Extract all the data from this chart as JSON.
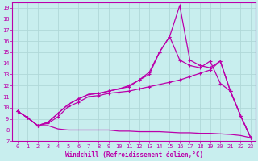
{
  "xlabel": "Windchill (Refroidissement éolien,°C)",
  "bg_color": "#c8eeee",
  "grid_color": "#b0d8d8",
  "line_color": "#bb00aa",
  "xlim": [
    -0.5,
    23.5
  ],
  "ylim": [
    7,
    19.5
  ],
  "xticks": [
    0,
    1,
    2,
    3,
    4,
    5,
    6,
    7,
    8,
    9,
    10,
    11,
    12,
    13,
    14,
    15,
    16,
    17,
    18,
    19,
    20,
    21,
    22,
    23
  ],
  "yticks": [
    7,
    8,
    9,
    10,
    11,
    12,
    13,
    14,
    15,
    16,
    17,
    18,
    19
  ],
  "line1_flat": {
    "x": [
      0,
      1,
      2,
      3,
      4,
      5,
      6,
      7,
      8,
      9,
      10,
      11,
      12,
      13,
      14,
      15,
      16,
      17,
      18,
      19,
      20,
      21,
      22,
      23
    ],
    "y": [
      9.7,
      9.1,
      8.4,
      8.4,
      8.1,
      8.0,
      8.0,
      8.0,
      8.0,
      8.0,
      7.9,
      7.9,
      7.85,
      7.85,
      7.85,
      7.8,
      7.75,
      7.75,
      7.7,
      7.7,
      7.65,
      7.6,
      7.5,
      7.3
    ]
  },
  "line2_gradual": {
    "x": [
      0,
      1,
      2,
      3,
      4,
      5,
      6,
      7,
      8,
      9,
      10,
      11,
      12,
      13,
      14,
      15,
      16,
      17,
      18,
      19,
      20,
      21,
      22,
      23
    ],
    "y": [
      9.7,
      9.1,
      8.4,
      8.6,
      9.2,
      10.1,
      10.5,
      11.0,
      11.1,
      11.3,
      11.4,
      11.5,
      11.7,
      11.9,
      12.1,
      12.3,
      12.5,
      12.8,
      13.1,
      13.4,
      14.2,
      11.5,
      9.3,
      7.3
    ]
  },
  "line3_medium": {
    "x": [
      0,
      1,
      2,
      3,
      4,
      5,
      6,
      7,
      8,
      9,
      10,
      11,
      12,
      13,
      14,
      15,
      16,
      17,
      18,
      19,
      20,
      21,
      22,
      23
    ],
    "y": [
      9.7,
      9.1,
      8.4,
      8.7,
      9.5,
      10.3,
      10.8,
      11.2,
      11.3,
      11.5,
      11.7,
      11.9,
      12.5,
      13.0,
      15.0,
      16.4,
      14.3,
      13.8,
      13.6,
      14.2,
      12.2,
      11.5,
      9.3,
      7.3
    ]
  },
  "line4_peak": {
    "x": [
      0,
      1,
      2,
      3,
      4,
      5,
      6,
      7,
      8,
      9,
      10,
      11,
      12,
      13,
      14,
      15,
      16,
      17,
      18,
      19,
      20,
      21,
      22,
      23
    ],
    "y": [
      9.7,
      9.1,
      8.4,
      8.7,
      9.5,
      10.3,
      10.8,
      11.2,
      11.3,
      11.5,
      11.7,
      12.0,
      12.5,
      13.2,
      15.0,
      16.4,
      19.2,
      14.3,
      13.8,
      13.6,
      14.2,
      11.5,
      9.3,
      7.3
    ]
  }
}
